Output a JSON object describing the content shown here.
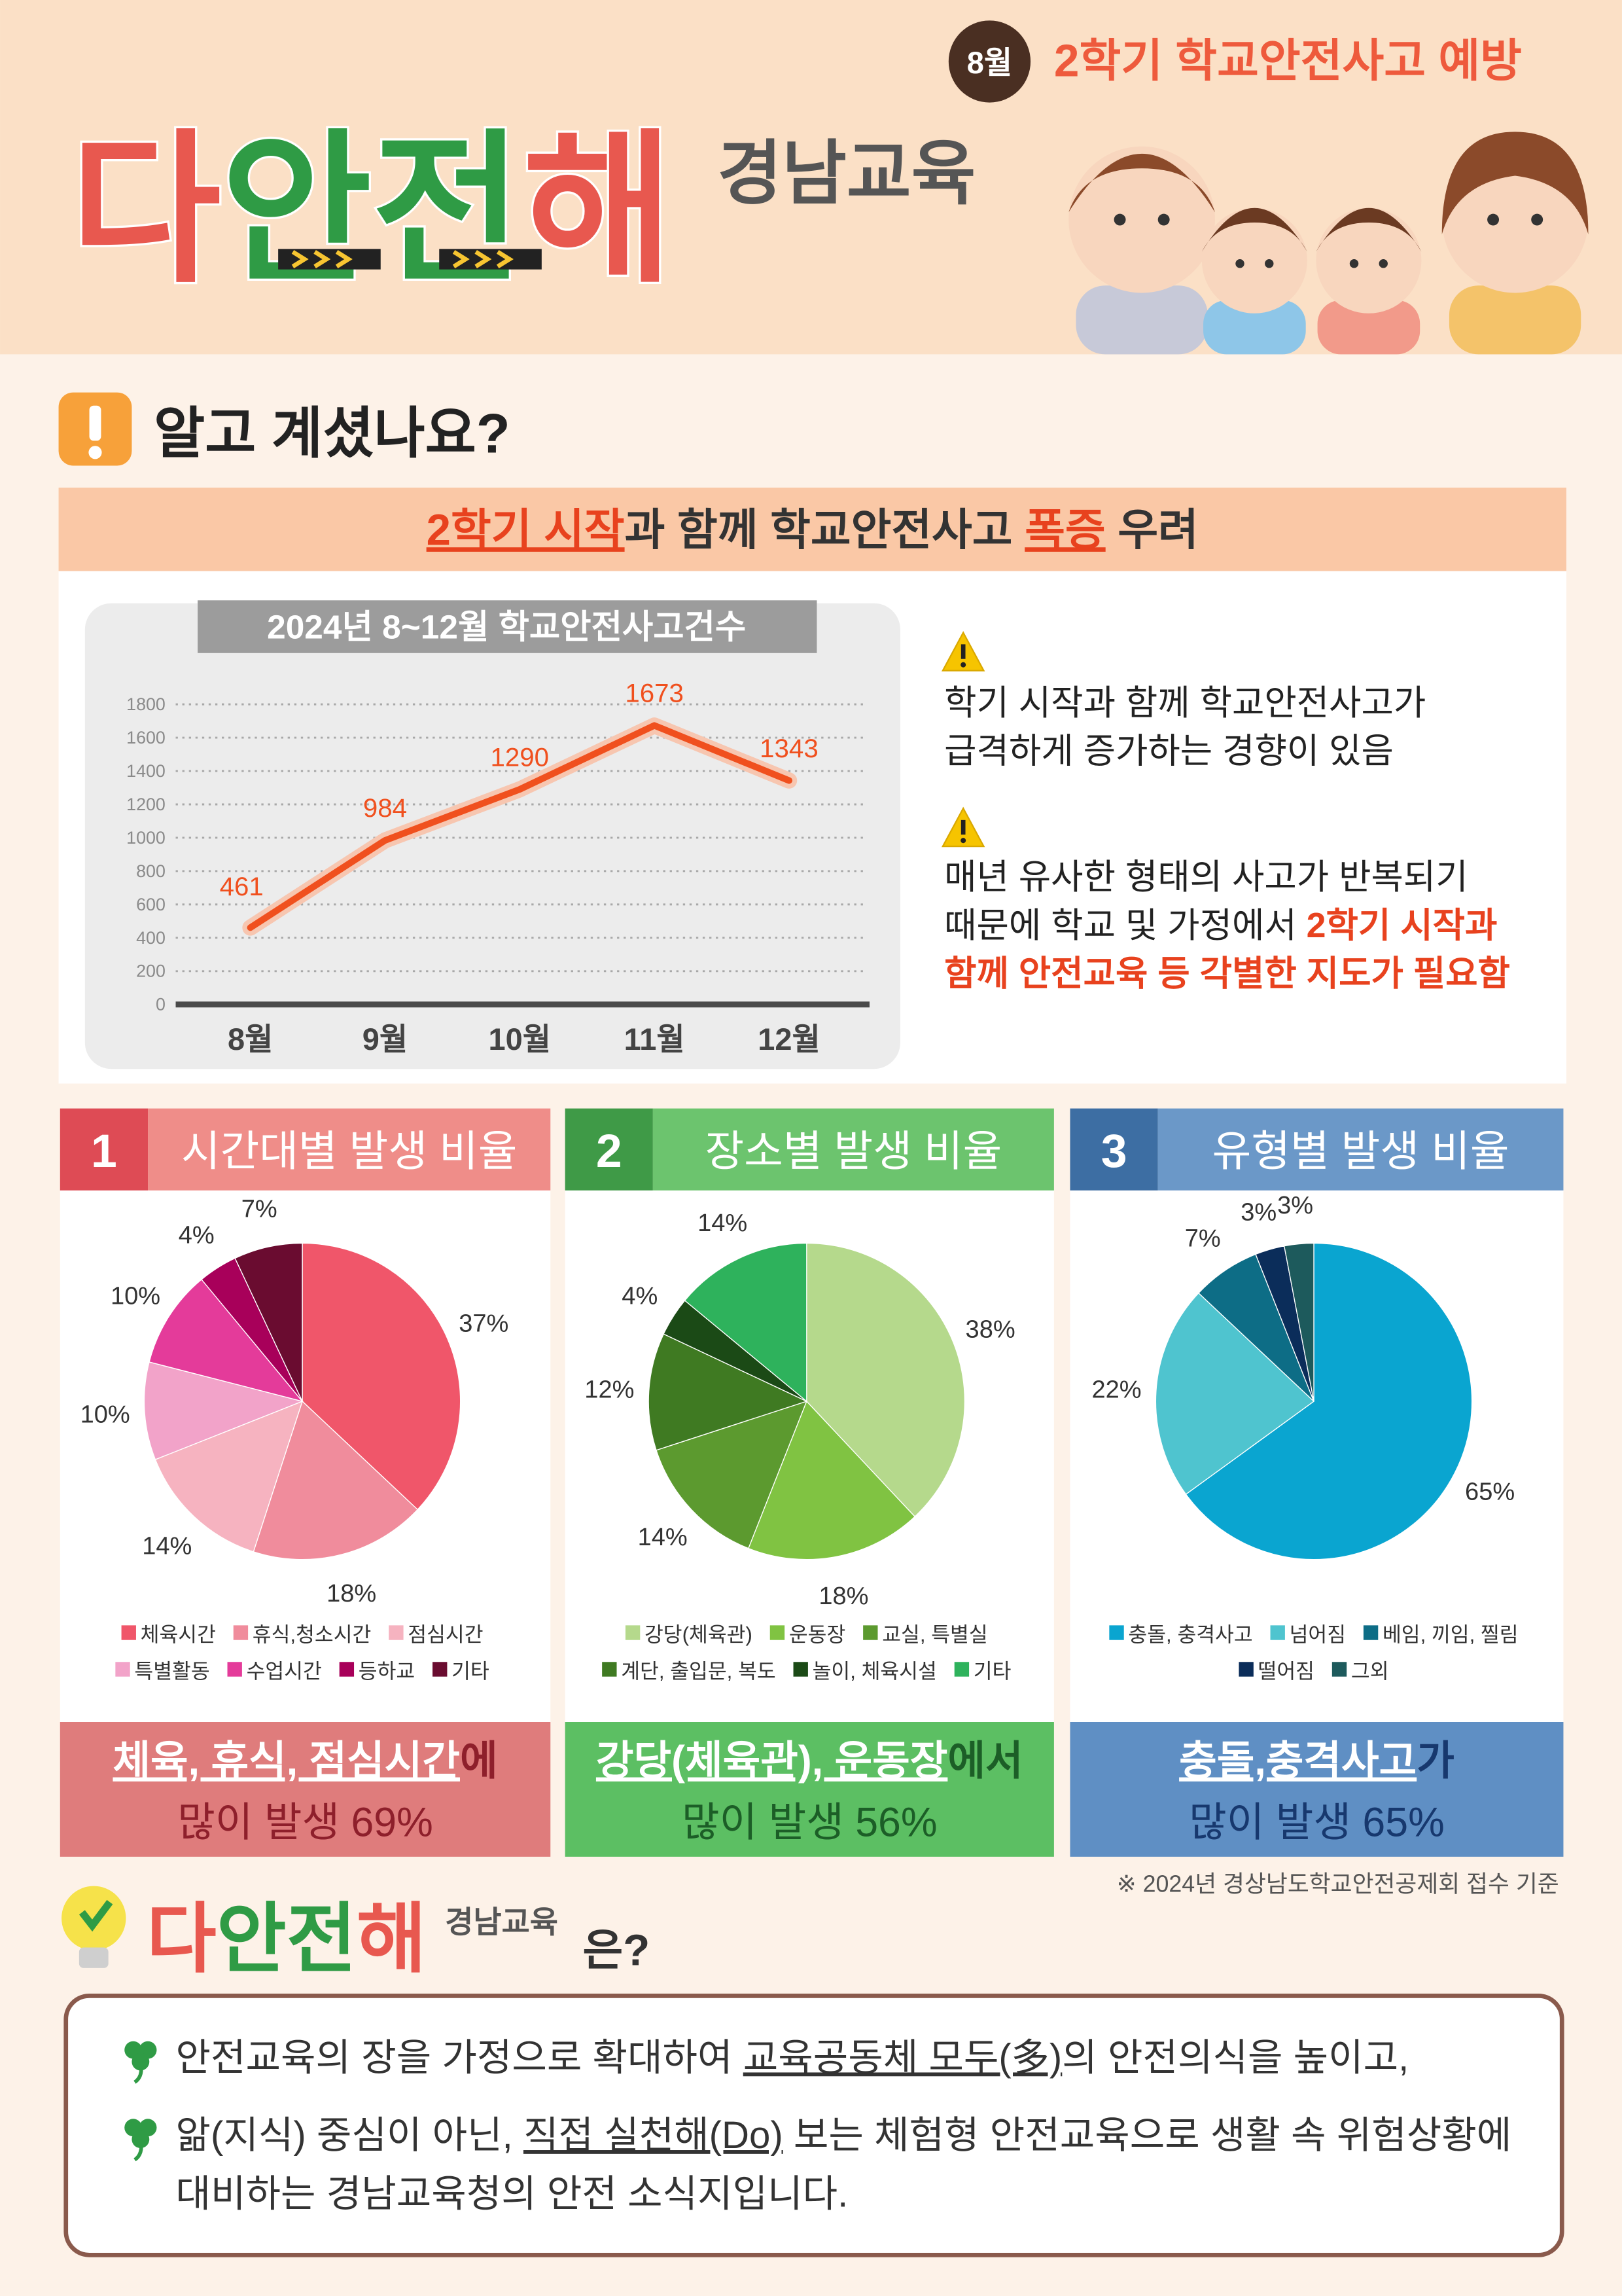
{
  "header": {
    "badge": "8월",
    "topic": "2학기 학교안전사고 예방",
    "logo": "다안전해",
    "org": "경남교육"
  },
  "intro": {
    "title": "알고 계셨나요?",
    "banner": [
      "2학기 시작",
      "과 함께 학교안전사고 ",
      "폭증",
      " 우려"
    ]
  },
  "notes": [
    {
      "lines": [
        "학기 시작과 함께 학교안전사고가",
        "급격하게 증가하는 경향이 있음"
      ]
    },
    {
      "lines": [
        "매년 유사한 형태의 사고가 반복되기",
        "때문에 학교 및 가정에서 "
      ],
      "emphasis": [
        "2학기 시작과",
        "함께 안전교육 등 각별한 지도가 필요함"
      ]
    }
  ],
  "chart_data": [
    {
      "type": "line",
      "title": "2024년 8~12월 학교안전사고건수",
      "categories": [
        "8월",
        "9월",
        "10월",
        "11월",
        "12월"
      ],
      "values": [
        461,
        984,
        1290,
        1673,
        1343
      ],
      "color": "#f0501e",
      "ylim": [
        0,
        1800
      ],
      "yticks": [
        0,
        200,
        400,
        600,
        800,
        1000,
        1200,
        1400,
        1600,
        1800
      ],
      "grid": true
    },
    {
      "type": "pie",
      "number": "1",
      "title": "시간대별 발생 비율",
      "categories": [
        "체육시간",
        "휴식,청소시간",
        "점심시간",
        "특별활동",
        "수업시간",
        "등하교",
        "기타"
      ],
      "values": [
        37,
        18,
        14,
        10,
        10,
        4,
        7
      ],
      "value_labels": [
        "37%",
        "18%",
        "14%",
        "10%",
        "10%",
        "4%",
        "7%"
      ],
      "colors": [
        "#f0566a",
        "#f08c9c",
        "#f6b3c0",
        "#f2a3c9",
        "#e43b9a",
        "#a8005a",
        "#6a0c30"
      ],
      "summary": [
        "체육, 휴식, 점심시간",
        "에",
        "많이 발생 69%"
      ]
    },
    {
      "type": "pie",
      "number": "2",
      "title": "장소별 발생 비율",
      "categories": [
        "강당(체육관)",
        "운동장",
        "교실, 특별실",
        "계단, 출입문, 복도",
        "놀이, 체육시설",
        "기타"
      ],
      "values": [
        38,
        18,
        14,
        12,
        4,
        14
      ],
      "value_labels": [
        "38%",
        "18%",
        "14%",
        "12%",
        "4%",
        "14%"
      ],
      "colors": [
        "#b5d98c",
        "#80c342",
        "#5c9a2f",
        "#3f7a22",
        "#1b4a16",
        "#2eb25c"
      ],
      "summary": [
        "강당(체육관), 운동장",
        "에서",
        "많이 발생 56%"
      ]
    },
    {
      "type": "pie",
      "number": "3",
      "title": "유형별 발생 비율",
      "categories": [
        "충돌, 충격사고",
        "넘어짐",
        "베임, 끼임, 찔림",
        "떨어짐",
        "그외"
      ],
      "values": [
        65,
        22,
        7,
        3,
        3
      ],
      "value_labels": [
        "65%",
        "22%",
        "7%",
        "3%",
        "3%"
      ],
      "colors": [
        "#0aa5d0",
        "#4fc4cf",
        "#0d6d86",
        "#0b2d5a",
        "#1d5a5c"
      ],
      "summary": [
        "충돌,충격사고",
        "가",
        "많이 발생 65%"
      ]
    }
  ],
  "footnote": "※ 2024년 경상남도학교안전공제회 접수 기준",
  "outro": {
    "logo": "다안전해",
    "org": "경남교육",
    "suffix": "은?",
    "bullets": [
      [
        [
          "안전교육의 장을 가정으로 확대하여 ",
          "교육공동체 모두(多)",
          "의 안전의식을 높이고,"
        ]
      ],
      [
        [
          "앎(지식) 중심이 아닌, ",
          "직접 실천해(Do)",
          " 보는 체험형 안전교육으로 생활 속 위험상황에"
        ],
        [
          "대비하는 경남교육청의 안전 소식지입니다."
        ]
      ]
    ]
  }
}
